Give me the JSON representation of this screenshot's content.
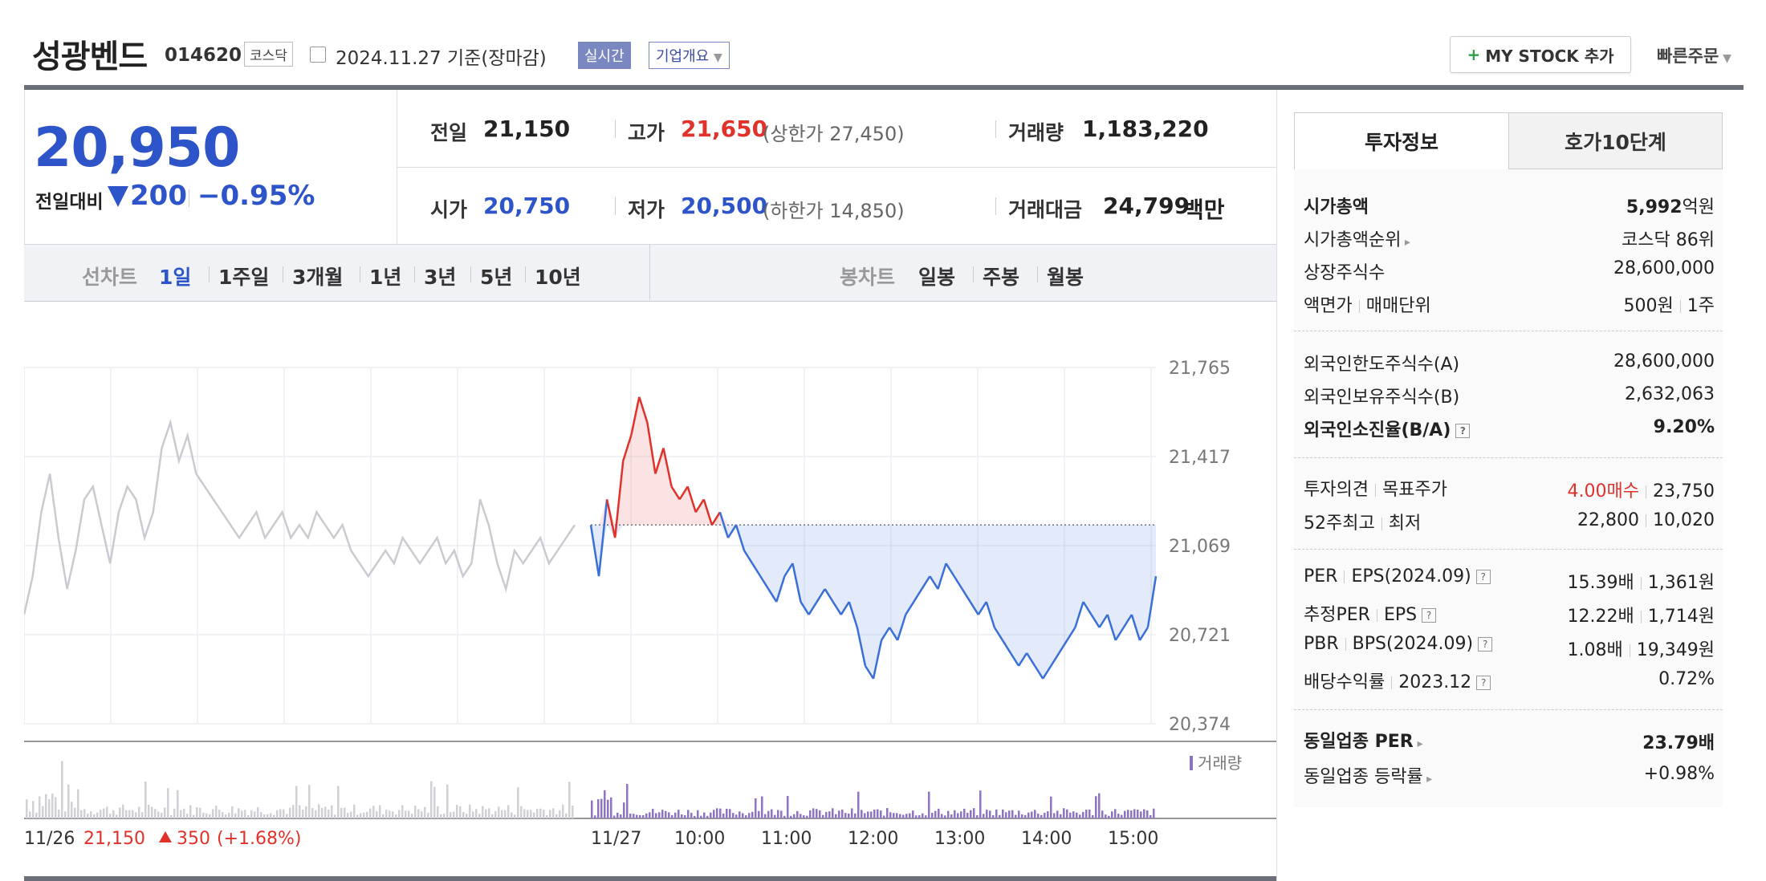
{
  "header": {
    "stock_name": "성광벤드",
    "stock_code": "014620",
    "market": "코스닥",
    "date_text": "2024.11.27 기준(장마감)",
    "realtime_label": "실시간",
    "company_menu": "기업개요",
    "mystock_label": "MY STOCK 추가",
    "quick_order": "빠른주문"
  },
  "price": {
    "current": "20,950",
    "change_label": "전일대비",
    "change_amount": "200",
    "change_pct": "−0.95%",
    "direction": "down",
    "stats": {
      "prev_close_label": "전일",
      "prev_close": "21,150",
      "high_label": "고가",
      "high": "21,650",
      "upper_limit_text": "(상한가 27,450)",
      "volume_label": "거래량",
      "volume": "1,183,220",
      "open_label": "시가",
      "open": "20,750",
      "low_label": "저가",
      "low": "20,500",
      "lower_limit_text": "(하한가 14,850)",
      "amount_label": "거래대금",
      "amount": "24,799",
      "amount_unit": "백만"
    }
  },
  "tabs": {
    "line_label": "선차트",
    "line_periods": [
      "1일",
      "1주일",
      "3개월",
      "1년",
      "3년",
      "5년",
      "10년"
    ],
    "line_active": "1일",
    "candle_label": "봉차트",
    "candle_periods": [
      "일봉",
      "주봉",
      "월봉"
    ]
  },
  "chart_data": {
    "type": "line",
    "y_ticks": [
      "21,765",
      "21,417",
      "21,069",
      "20,721",
      "20,374"
    ],
    "ylim": [
      20374,
      21765
    ],
    "prev_close": 21150,
    "volume_label": "거래량",
    "x_labels": [
      "11/26",
      "11/27",
      "10:00",
      "11:00",
      "12:00",
      "13:00",
      "14:00",
      "15:00"
    ],
    "prev_day_summary": {
      "date": "11/26",
      "close": "21,150",
      "change": "350",
      "change_pct": "(+1.68%)"
    },
    "prev_day_series": [
      20800,
      20950,
      21200,
      21350,
      21100,
      20900,
      21050,
      21250,
      21300,
      21150,
      21000,
      21200,
      21300,
      21250,
      21100,
      21200,
      21450,
      21550,
      21400,
      21500,
      21350,
      21300,
      21250,
      21200,
      21150,
      21100,
      21150,
      21200,
      21100,
      21150,
      21200,
      21100,
      21150,
      21100,
      21200,
      21150,
      21100,
      21150,
      21050,
      21000,
      20950,
      21000,
      21050,
      21000,
      21100,
      21050,
      21000,
      21050,
      21100,
      21000,
      21050,
      20950,
      21000,
      21250,
      21150,
      21000,
      20900,
      21050,
      21000,
      21050,
      21100,
      21000,
      21050,
      21100,
      21150
    ],
    "today_series": [
      21150,
      20950,
      21250,
      21100,
      21400,
      21500,
      21650,
      21550,
      21350,
      21450,
      21300,
      21250,
      21300,
      21200,
      21250,
      21150,
      21200,
      21100,
      21150,
      21050,
      21000,
      20950,
      20900,
      20850,
      20950,
      21000,
      20850,
      20800,
      20850,
      20900,
      20850,
      20800,
      20850,
      20750,
      20600,
      20550,
      20700,
      20750,
      20700,
      20800,
      20850,
      20900,
      20950,
      20900,
      21000,
      20950,
      20900,
      20850,
      20800,
      20850,
      20750,
      20700,
      20650,
      20600,
      20650,
      20600,
      20550,
      20600,
      20650,
      20700,
      20750,
      20850,
      20800,
      20750,
      20800,
      20700,
      20750,
      20800,
      20700,
      20750,
      20950
    ]
  },
  "invest_info": {
    "tab_active": "투자정보",
    "tab_other": "호가10단계",
    "market_cap_label": "시가총액",
    "market_cap_num": "5,992",
    "market_cap_unit": "억원",
    "cap_rank_label": "시가총액순위",
    "cap_rank": "코스닥 86위",
    "listed_shares_label": "상장주식수",
    "listed_shares": "28,600,000",
    "face_label": "액면가",
    "unit_label": "매매단위",
    "face_value": "500원",
    "trade_unit": "1주",
    "foreign_limit_label": "외국인한도주식수(A)",
    "foreign_limit": "28,600,000",
    "foreign_hold_label": "외국인보유주식수(B)",
    "foreign_hold": "2,632,063",
    "foreign_ratio_label": "외국인소진율(B/A)",
    "foreign_ratio": "9.20%",
    "opinion_label": "투자의견",
    "target_label": "목표주가",
    "opinion": "4.00매수",
    "target_price": "23,750",
    "w52_label": "52주최고",
    "w52_low_label": "최저",
    "w52_high": "22,800",
    "w52_low": "10,020",
    "per_label": "PER",
    "eps_label": "EPS(2024.09)",
    "per": "15.39배",
    "eps": "1,361원",
    "est_per_label": "추정PER",
    "est_eps_label": "EPS",
    "est_per": "12.22배",
    "est_eps": "1,714원",
    "pbr_label": "PBR",
    "bps_label": "BPS(2024.09)",
    "pbr": "1.08배",
    "bps": "19,349원",
    "div_label": "배당수익률",
    "div_year": "2023.12",
    "div_yield": "0.72%",
    "sector_per_label": "동일업종 PER",
    "sector_per": "23.79배",
    "sector_chg_label": "동일업종 등락률",
    "sector_chg": "+0.98%"
  }
}
